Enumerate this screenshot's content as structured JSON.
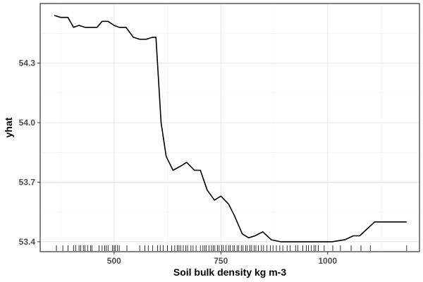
{
  "chart_data": {
    "type": "line",
    "xlabel": "Soil bulk density kg m-3",
    "ylabel": "yhat",
    "xlim": [
      327,
      1215
    ],
    "ylim": [
      53.35,
      54.6
    ],
    "x_ticks": [
      500,
      750,
      1000
    ],
    "y_ticks": [
      53.4,
      53.7,
      54.0,
      54.3
    ],
    "x_tick_labels": [
      "500",
      "750",
      "1000"
    ],
    "y_tick_labels": [
      "53.4",
      "53.7",
      "54.0",
      "54.3"
    ],
    "grid": true,
    "series": [
      {
        "color": "#000000",
        "points": [
          [
            360,
            54.54
          ],
          [
            375,
            54.53
          ],
          [
            392,
            54.53
          ],
          [
            405,
            54.48
          ],
          [
            418,
            54.49
          ],
          [
            432,
            54.48
          ],
          [
            446,
            54.48
          ],
          [
            460,
            54.48
          ],
          [
            472,
            54.51
          ],
          [
            486,
            54.51
          ],
          [
            500,
            54.49
          ],
          [
            512,
            54.48
          ],
          [
            528,
            54.48
          ],
          [
            545,
            54.43
          ],
          [
            560,
            54.42
          ],
          [
            575,
            54.42
          ],
          [
            590,
            54.43
          ],
          [
            598,
            54.43
          ],
          [
            610,
            54.0
          ],
          [
            622,
            53.83
          ],
          [
            638,
            53.76
          ],
          [
            655,
            53.78
          ],
          [
            670,
            53.8
          ],
          [
            688,
            53.76
          ],
          [
            702,
            53.76
          ],
          [
            718,
            53.66
          ],
          [
            735,
            53.61
          ],
          [
            750,
            53.63
          ],
          [
            768,
            53.59
          ],
          [
            782,
            53.53
          ],
          [
            800,
            53.44
          ],
          [
            815,
            53.42
          ],
          [
            830,
            53.43
          ],
          [
            848,
            53.45
          ],
          [
            868,
            53.41
          ],
          [
            890,
            53.4
          ],
          [
            920,
            53.4
          ],
          [
            950,
            53.4
          ],
          [
            978,
            53.4
          ],
          [
            1010,
            53.4
          ],
          [
            1040,
            53.41
          ],
          [
            1060,
            53.43
          ],
          [
            1075,
            53.43
          ],
          [
            1090,
            53.46
          ],
          [
            1110,
            53.5
          ],
          [
            1130,
            53.5
          ],
          [
            1150,
            53.5
          ],
          [
            1170,
            53.5
          ],
          [
            1185,
            53.5
          ]
        ]
      }
    ],
    "rug": [
      365,
      380,
      392,
      405,
      410,
      418,
      422,
      428,
      432,
      438,
      445,
      448,
      465,
      472,
      478,
      482,
      486,
      496,
      500,
      503,
      508,
      512,
      530,
      560,
      572,
      580,
      590,
      602,
      608,
      615,
      625,
      635,
      642,
      648,
      652,
      656,
      662,
      668,
      672,
      680,
      685,
      692,
      702,
      708,
      712,
      716,
      722,
      728,
      732,
      736,
      742,
      746,
      752,
      756,
      762,
      768,
      772,
      778,
      782,
      788,
      792,
      798,
      802,
      808,
      812,
      818,
      822,
      828,
      832,
      838,
      845,
      850,
      858,
      866,
      872,
      880,
      888,
      895,
      905,
      912,
      925,
      930,
      942,
      950,
      955,
      962,
      968,
      972,
      978,
      992,
      1012,
      1030,
      1055,
      1078,
      1100,
      1185
    ]
  }
}
